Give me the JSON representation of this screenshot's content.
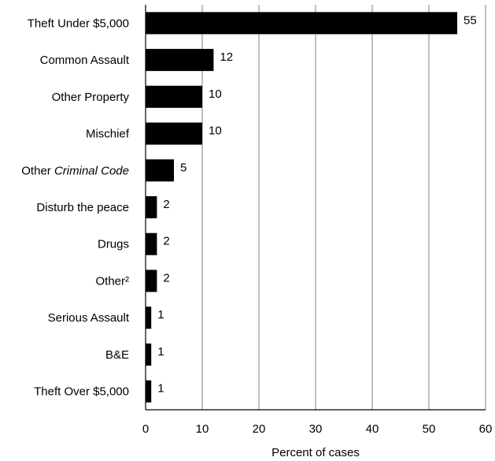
{
  "chart_data": {
    "type": "bar",
    "orientation": "horizontal",
    "categories": [
      "Theft Under $5,000",
      "Common Assault",
      "Other Property",
      "Mischief",
      "Other Criminal Code",
      "Disturb the peace",
      "Drugs",
      "Other²",
      "Serious Assault",
      "B&E",
      "Theft Over $5,000"
    ],
    "values": [
      55,
      12,
      10,
      10,
      5,
      2,
      2,
      2,
      1,
      1,
      1
    ],
    "value_labels": [
      "55",
      "12",
      "10",
      "10",
      "5",
      "2",
      "2",
      "2",
      "1",
      "1",
      "1"
    ],
    "xlabel": "Percent of cases",
    "ylabel": "",
    "xlim": [
      0,
      60
    ],
    "xticks": [
      "0",
      "10",
      "20",
      "30",
      "40",
      "50",
      "60"
    ],
    "grid": "vertical",
    "legend": "none",
    "colors": {
      "bar": "#000000",
      "grid": "#808080",
      "axis": "#000000"
    }
  }
}
